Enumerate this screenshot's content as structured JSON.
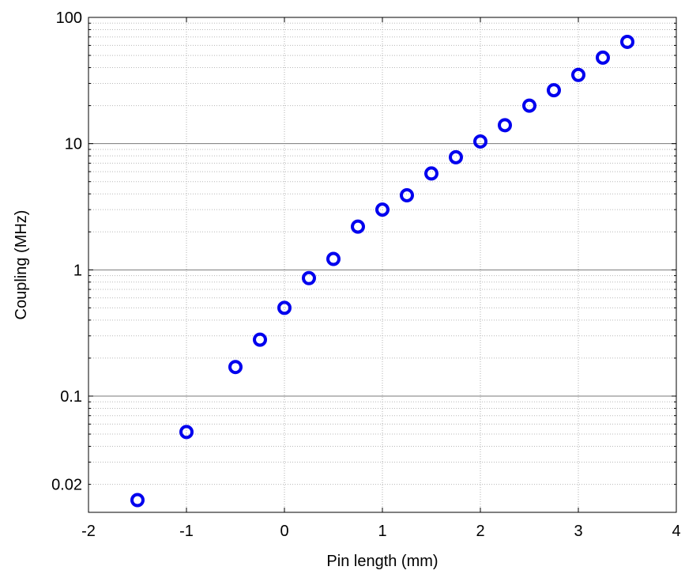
{
  "chart_data": {
    "type": "scatter",
    "xlabel": "Pin length (mm)",
    "ylabel": "Coupling (MHz)",
    "xlim": [
      -2,
      4
    ],
    "ylim": [
      0.012,
      100
    ],
    "yscale": "log",
    "grid": true,
    "x_ticks": [
      {
        "value": -2,
        "label": "-2"
      },
      {
        "value": -1,
        "label": "-1"
      },
      {
        "value": 0,
        "label": "0"
      },
      {
        "value": 1,
        "label": "1"
      },
      {
        "value": 2,
        "label": "2"
      },
      {
        "value": 3,
        "label": "3"
      },
      {
        "value": 4,
        "label": "4"
      }
    ],
    "y_ticks": [
      {
        "value": 0.02,
        "label": "0.02"
      },
      {
        "value": 0.1,
        "label": "0.1"
      },
      {
        "value": 1,
        "label": "1"
      },
      {
        "value": 10,
        "label": "10"
      },
      {
        "value": 100,
        "label": "100"
      }
    ],
    "marker_color": "#0000ee",
    "series": [
      {
        "x": [
          -1.5,
          -1.0,
          -0.5,
          -0.25,
          0.0,
          0.25,
          0.5,
          0.75,
          1.0,
          1.25,
          1.5,
          1.75,
          2.0,
          2.25,
          2.5,
          2.75,
          3.0,
          3.25,
          3.5
        ],
        "y": [
          0.015,
          0.052,
          0.17,
          0.28,
          0.5,
          0.86,
          1.22,
          2.2,
          3.0,
          3.9,
          5.8,
          7.8,
          10.4,
          14.0,
          20.0,
          26.5,
          35.0,
          48.0,
          64.0
        ]
      }
    ]
  }
}
